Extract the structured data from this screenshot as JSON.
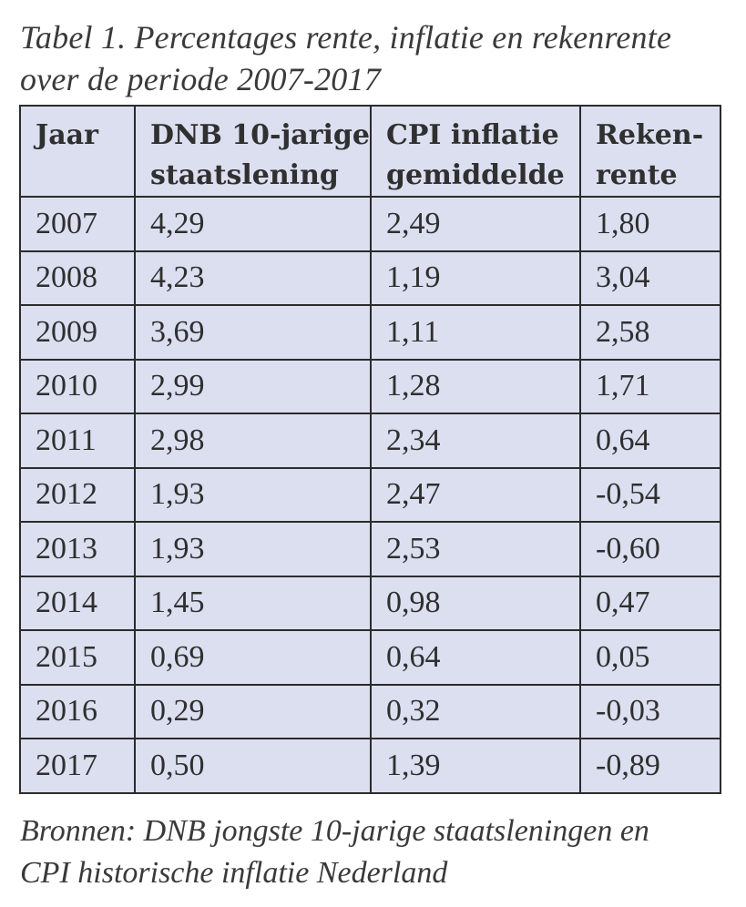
{
  "caption": {
    "line1": "Tabel 1. Percentages rente, inflatie en rekenrente",
    "line2": "over de periode 2007-2017"
  },
  "table": {
    "headers": [
      {
        "line1": "Jaar",
        "line2": ""
      },
      {
        "line1": "DNB 10-jarige",
        "line2": "staatslening"
      },
      {
        "line1": "CPI inflatie",
        "line2": "gemiddelde"
      },
      {
        "line1": "Reken-",
        "line2": "rente"
      }
    ],
    "rows": [
      [
        "2007",
        "4,29",
        "2,49",
        "1,80"
      ],
      [
        "2008",
        "4,23",
        "1,19",
        "3,04"
      ],
      [
        "2009",
        "3,69",
        "1,11",
        "2,58"
      ],
      [
        "2010",
        "2,99",
        "1,28",
        "1,71"
      ],
      [
        "2011",
        "2,98",
        "2,34",
        "0,64"
      ],
      [
        "2012",
        "1,93",
        "2,47",
        "-0,54"
      ],
      [
        "2013",
        "1,93",
        "2,53",
        "-0,60"
      ],
      [
        "2014",
        "1,45",
        "0,98",
        "0,47"
      ],
      [
        "2015",
        "0,69",
        "0,64",
        "0,05"
      ],
      [
        "2016",
        "0,29",
        "0,32",
        "-0,03"
      ],
      [
        "2017",
        "0,50",
        "1,39",
        "-0,89"
      ]
    ]
  },
  "footer": {
    "line1": "Bronnen: DNB jongste 10-jarige staatsleningen en",
    "line2": "CPI historische inflatie Nederland"
  },
  "colors": {
    "table_background": "#dcdff0",
    "border": "#2b2b2b",
    "text": "#2f2f2f"
  }
}
